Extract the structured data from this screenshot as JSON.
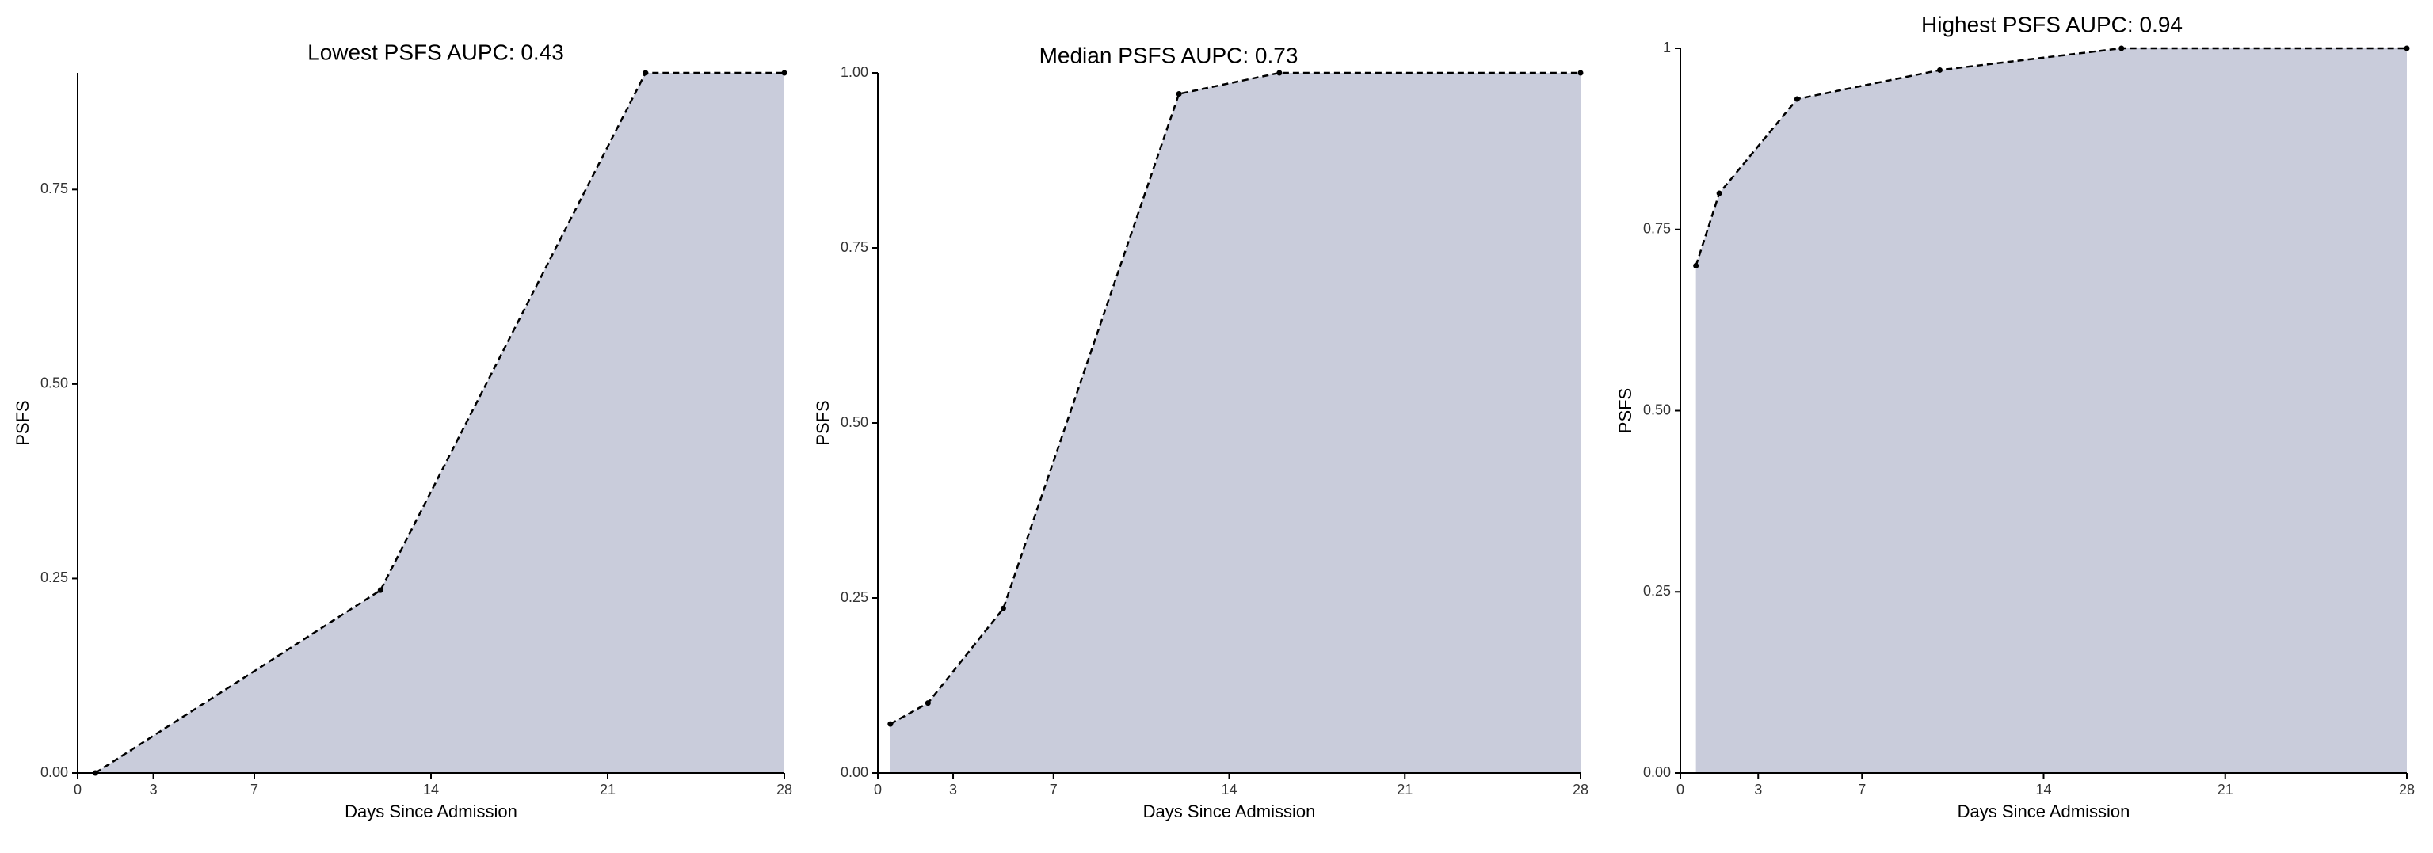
{
  "chart_data": [
    {
      "type": "area",
      "title": "Lowest PSFS AUPC: 0.43",
      "x_label": "Days Since Admission",
      "y_label": "PSFS",
      "x": [
        0.7,
        12,
        22.5,
        28
      ],
      "values": [
        0,
        0.235,
        0.9,
        0.9
      ],
      "color": "#c9ccdb",
      "xlim": [
        0,
        28
      ],
      "xticks": [
        0,
        3,
        7,
        14,
        21,
        28
      ],
      "ylim": [
        0,
        0.9
      ],
      "yticks": [
        {
          "value": 0,
          "label": "0.00"
        },
        {
          "value": 0.25,
          "label": "0.25"
        },
        {
          "value": 0.5,
          "label": "0.50"
        },
        {
          "value": 0.75,
          "label": "0.75"
        }
      ]
    },
    {
      "type": "area",
      "title": "Median PSFS AUPC: 0.73",
      "x_label": "Days Since Admission",
      "y_label": "PSFS",
      "x": [
        0.5,
        2,
        5,
        12,
        16,
        28
      ],
      "values": [
        0.07,
        0.1,
        0.235,
        0.97,
        1,
        1
      ],
      "color": "#c9ccdb",
      "xlim": [
        0,
        28
      ],
      "xticks": [
        0,
        3,
        7,
        14,
        21,
        28
      ],
      "ylim": [
        0,
        1
      ],
      "yticks": [
        {
          "value": 0,
          "label": "0.00"
        },
        {
          "value": 0.25,
          "label": "0.25"
        },
        {
          "value": 0.5,
          "label": "0.50"
        },
        {
          "value": 0.75,
          "label": "0.75"
        },
        {
          "value": 1,
          "label": "1.00"
        }
      ]
    },
    {
      "type": "area",
      "title": "Highest PSFS AUPC: 0.94",
      "x_label": "Days Since Admission",
      "y_label": "PSFS",
      "x": [
        0.6,
        1.5,
        4.5,
        10,
        17,
        28
      ],
      "values": [
        0.7,
        0.8,
        0.93,
        0.97,
        1,
        1
      ],
      "color": "#c9ccdb",
      "xlim": [
        0,
        28
      ],
      "xticks": [
        0,
        3,
        7,
        14,
        21,
        28
      ],
      "ylim": [
        0,
        1
      ],
      "yticks": [
        {
          "value": 0,
          "label": "0.00"
        },
        {
          "value": 0.25,
          "label": "0.25"
        },
        {
          "value": 0.5,
          "label": "0.50"
        },
        {
          "value": 0.75,
          "label": "0.75"
        },
        1
      ]
    }
  ]
}
